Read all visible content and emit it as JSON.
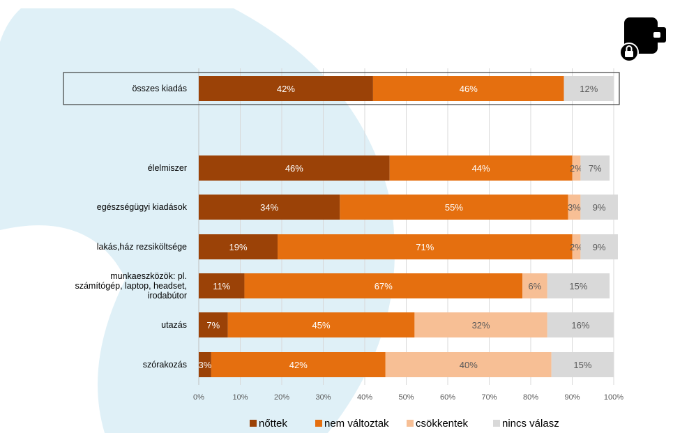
{
  "colors": {
    "background_accent": "#dff0f7",
    "icon": "#000000"
  },
  "icon": {
    "name": "wallet-lock-icon"
  },
  "chart_data": {
    "type": "bar",
    "orientation": "horizontal",
    "stacked": true,
    "percent_stacked": true,
    "categories": [
      "összes kiadás",
      "",
      "élelmiszer",
      "egészségügyi kiadások",
      "lakás,ház rezsiköltsége",
      "munkaeszközök: pl. számítógép, laptop, headset, irodabútor",
      "utazás",
      "szórakozás"
    ],
    "series": [
      {
        "name": "nőttek",
        "color": "#9b4207",
        "values": [
          42,
          null,
          46,
          34,
          19,
          11,
          7,
          3
        ],
        "labels": [
          "42%",
          "",
          "46%",
          "34%",
          "19%",
          "11%",
          "7%",
          "3%"
        ]
      },
      {
        "name": "nem változtak",
        "color": "#e56f0f",
        "values": [
          46,
          null,
          44,
          55,
          71,
          67,
          45,
          42
        ],
        "labels": [
          "46%",
          "",
          "44%",
          "55%",
          "71%",
          "67%",
          "45%",
          "42%"
        ]
      },
      {
        "name": "csökkentek",
        "color": "#f7bf95",
        "values": [
          0,
          null,
          2,
          3,
          2,
          6,
          32,
          40
        ],
        "labels": [
          "",
          "",
          "2%",
          "3%",
          "2%",
          "6%",
          "32%",
          "40%"
        ]
      },
      {
        "name": "nincs válasz",
        "color": "#d9d9d9",
        "values": [
          12,
          null,
          7,
          9,
          9,
          15,
          16,
          15
        ],
        "labels": [
          "12%",
          "",
          "7%",
          "9%",
          "9%",
          "15%",
          "16%",
          "15%"
        ]
      }
    ],
    "xticks": [
      "0%",
      "10%",
      "20%",
      "30%",
      "40%",
      "50%",
      "60%",
      "70%",
      "80%",
      "90%",
      "100%"
    ],
    "xlim": [
      0,
      100
    ],
    "grid": true,
    "legend_position": "bottom",
    "highlighted_category": "összes kiadás"
  }
}
